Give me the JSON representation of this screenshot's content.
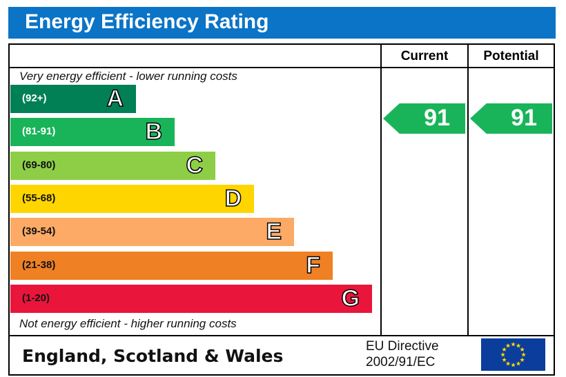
{
  "title": "Energy Efficiency Rating",
  "columns": {
    "current": "Current",
    "potential": "Potential"
  },
  "top_note": "Very energy efficient - lower running costs",
  "bottom_note": "Not energy efficient - higher running costs",
  "footer": {
    "region": "England, Scotland & Wales",
    "directive_line1": "EU Directive",
    "directive_line2": "2002/91/EC"
  },
  "colors": {
    "header": "#0b74c6",
    "A": "#008054",
    "B": "#19b459",
    "C": "#8dce46",
    "D": "#ffd500",
    "E": "#fcaa65",
    "F": "#ef8023",
    "G": "#e9153b",
    "eu_flag": "#0b3d9c",
    "eu_stars": "#ffdd00"
  },
  "chart_data": {
    "type": "bar",
    "title": "Energy Efficiency Rating",
    "categories": [
      "A",
      "B",
      "C",
      "D",
      "E",
      "F",
      "G"
    ],
    "ranges": [
      "(92+)",
      "(81-91)",
      "(69-80)",
      "(55-68)",
      "(39-54)",
      "(21-38)",
      "(1-20)"
    ],
    "current": 91,
    "potential": 91,
    "current_label": "91",
    "potential_label": "91"
  }
}
